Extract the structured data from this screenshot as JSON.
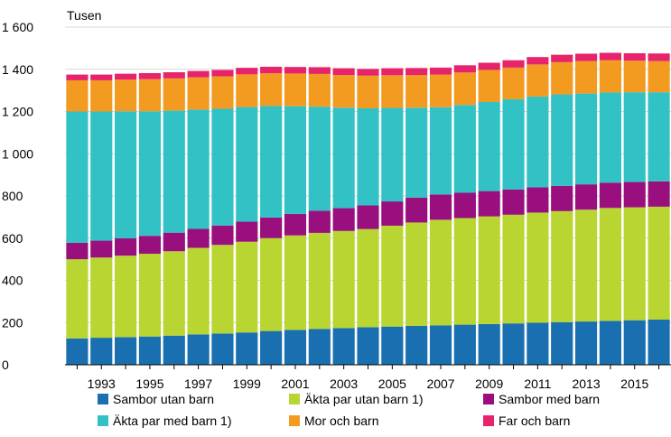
{
  "chart_data": {
    "type": "bar",
    "stacked": true,
    "unit_label": "Tusen",
    "years": [
      1992,
      1993,
      1994,
      1995,
      1996,
      1997,
      1998,
      1999,
      2000,
      2001,
      2002,
      2003,
      2004,
      2005,
      2006,
      2007,
      2008,
      2009,
      2010,
      2011,
      2012,
      2013,
      2014,
      2015,
      2016
    ],
    "x_tick_labels": [
      "1993",
      "1995",
      "1997",
      "1999",
      "2001",
      "2003",
      "2005",
      "2007",
      "2009",
      "2011",
      "2013",
      "2015"
    ],
    "y_ticks": [
      0,
      200,
      400,
      600,
      800,
      1000,
      1200,
      1400,
      1600
    ],
    "y_tick_labels": [
      "0",
      "200",
      "400",
      "600",
      "800",
      "1 000",
      "1 200",
      "1 400",
      "1 600"
    ],
    "ylim": [
      0,
      1600
    ],
    "legend_position": "bottom",
    "grid": "horizontal",
    "series": [
      {
        "name": "Sambor utan barn",
        "color": "#1a6fb0",
        "values": [
          125,
          128,
          131,
          134,
          138,
          144,
          148,
          153,
          160,
          165,
          170,
          174,
          178,
          181,
          184,
          187,
          190,
          193,
          196,
          199,
          202,
          205,
          208,
          211,
          214
        ]
      },
      {
        "name": "Äkta par utan barn 1)",
        "color": "#b8d531",
        "values": [
          375,
          380,
          386,
          392,
          400,
          410,
          420,
          430,
          440,
          448,
          455,
          460,
          465,
          478,
          490,
          500,
          505,
          510,
          515,
          522,
          526,
          530,
          535,
          535,
          535
        ]
      },
      {
        "name": "Sambor med barn",
        "color": "#9a0f7e",
        "values": [
          78,
          80,
          82,
          85,
          88,
          90,
          92,
          95,
          98,
          102,
          105,
          108,
          112,
          115,
          118,
          120,
          120,
          120,
          120,
          120,
          120,
          120,
          120,
          120,
          120
        ]
      },
      {
        "name": "Äkta par med barn 1)",
        "color": "#32c2c6",
        "values": [
          622,
          612,
          602,
          590,
          578,
          565,
          553,
          543,
          528,
          510,
          493,
          476,
          460,
          443,
          426,
          413,
          416,
          422,
          427,
          430,
          433,
          430,
          427,
          425,
          422
        ]
      },
      {
        "name": "Mor och barn",
        "color": "#f39a21",
        "values": [
          148,
          148,
          150,
          152,
          153,
          153,
          154,
          155,
          155,
          155,
          155,
          155,
          155,
          155,
          155,
          155,
          154,
          152,
          150,
          152,
          153,
          154,
          153,
          150,
          148
        ]
      },
      {
        "name": "Far och barn",
        "color": "#e6236b",
        "values": [
          27,
          27,
          28,
          29,
          29,
          30,
          30,
          31,
          31,
          31,
          32,
          32,
          32,
          33,
          33,
          33,
          34,
          34,
          35,
          35,
          35,
          35,
          35,
          35,
          36
        ]
      }
    ]
  }
}
